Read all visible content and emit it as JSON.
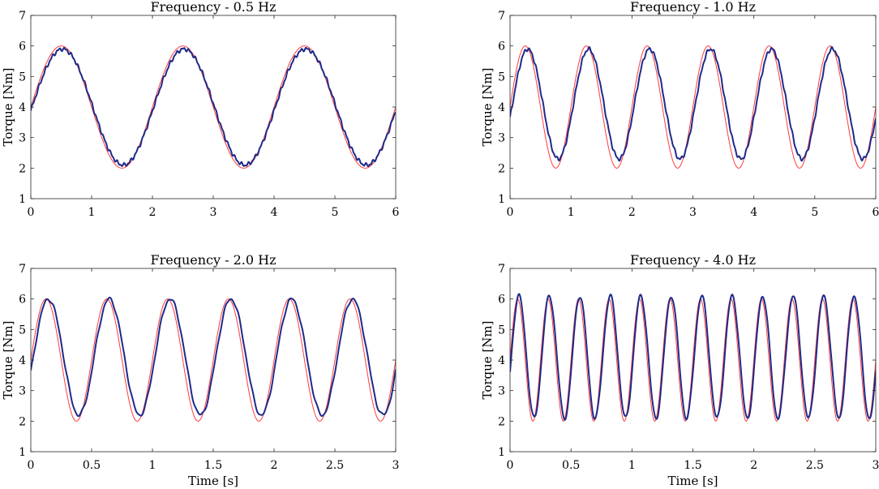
{
  "chart_data": [
    {
      "type": "line",
      "title": "Frequency - 0.5 Hz",
      "xlabel": "",
      "ylabel": "Torque [Nm]",
      "xlim": [
        0,
        6
      ],
      "ylim": [
        1,
        7
      ],
      "xticks": [
        0,
        1,
        2,
        3,
        4,
        5,
        6
      ],
      "xtick_labels": [
        "0",
        "1",
        "2",
        "3",
        "4",
        "5",
        "6"
      ],
      "yticks": [
        1,
        2,
        3,
        4,
        5,
        6,
        7
      ],
      "ytick_labels": [
        "1",
        "2",
        "3",
        "4",
        "5",
        "6",
        "7"
      ],
      "grid": false,
      "series": [
        {
          "color": "#ff3b3b",
          "frequency_hz": 0.5,
          "mean": 4.0,
          "amplitude": 2.0,
          "phase_lag_s": 0.0
        },
        {
          "color": "#1f2a8a",
          "frequency_hz": 0.5,
          "mean": 4.0,
          "amplitude": 1.9,
          "phase_lag_s": 0.02,
          "peak_value": 5.9,
          "trough_value": 2.1
        }
      ]
    },
    {
      "type": "line",
      "title": "Frequency - 1.0 Hz",
      "xlabel": "",
      "ylabel": "Torque [Nm]",
      "xlim": [
        0,
        6
      ],
      "ylim": [
        1,
        7
      ],
      "xticks": [
        0,
        1,
        2,
        3,
        4,
        5,
        6
      ],
      "xtick_labels": [
        "0",
        "1",
        "2",
        "3",
        "4",
        "5",
        "6"
      ],
      "yticks": [
        1,
        2,
        3,
        4,
        5,
        6,
        7
      ],
      "ytick_labels": [
        "1",
        "2",
        "3",
        "4",
        "5",
        "6",
        "7"
      ],
      "grid": false,
      "series": [
        {
          "color": "#ff3b3b",
          "frequency_hz": 1.0,
          "mean": 4.0,
          "amplitude": 2.0,
          "phase_lag_s": 0.0
        },
        {
          "color": "#1f2a8a",
          "frequency_hz": 1.0,
          "mean": 4.1,
          "amplitude": 1.8,
          "phase_lag_s": 0.04,
          "peak_value": 5.9,
          "trough_value": 2.3
        }
      ]
    },
    {
      "type": "line",
      "title": "Frequency - 2.0 Hz",
      "xlabel": "Time [s]",
      "ylabel": "Torque [Nm]",
      "xlim": [
        0,
        3
      ],
      "ylim": [
        1,
        7
      ],
      "xticks": [
        0,
        0.5,
        1,
        1.5,
        2,
        2.5,
        3
      ],
      "xtick_labels": [
        "0",
        "0.5",
        "1",
        "1.5",
        "2",
        "2.5",
        "3"
      ],
      "yticks": [
        1,
        2,
        3,
        4,
        5,
        6,
        7
      ],
      "ytick_labels": [
        "1",
        "2",
        "3",
        "4",
        "5",
        "6",
        "7"
      ],
      "grid": false,
      "series": [
        {
          "color": "#ff3b3b",
          "frequency_hz": 2.0,
          "mean": 4.0,
          "amplitude": 2.0,
          "phase_lag_s": 0.0
        },
        {
          "color": "#1f2a8a",
          "frequency_hz": 2.0,
          "mean": 4.1,
          "amplitude": 1.9,
          "phase_lag_s": 0.02,
          "peak_value": 6.0,
          "trough_value": 2.2
        }
      ]
    },
    {
      "type": "line",
      "title": "Frequency - 4.0 Hz",
      "xlabel": "Time [s]",
      "ylabel": "Torque [Nm]",
      "xlim": [
        0,
        3
      ],
      "ylim": [
        1,
        7
      ],
      "xticks": [
        0,
        0.5,
        1,
        1.5,
        2,
        2.5,
        3
      ],
      "xtick_labels": [
        "0",
        "0.5",
        "1",
        "1.5",
        "2",
        "2.5",
        "3"
      ],
      "yticks": [
        1,
        2,
        3,
        4,
        5,
        6,
        7
      ],
      "ytick_labels": [
        "1",
        "2",
        "3",
        "4",
        "5",
        "6",
        "7"
      ],
      "grid": false,
      "series": [
        {
          "color": "#ff3b3b",
          "frequency_hz": 4.0,
          "mean": 4.0,
          "amplitude": 2.0,
          "phase_lag_s": 0.0
        },
        {
          "color": "#1f2a8a",
          "frequency_hz": 4.0,
          "mean": 4.1,
          "amplitude": 2.0,
          "phase_lag_s": 0.01,
          "peak_value": 6.1,
          "trough_value": 2.1
        }
      ]
    }
  ]
}
